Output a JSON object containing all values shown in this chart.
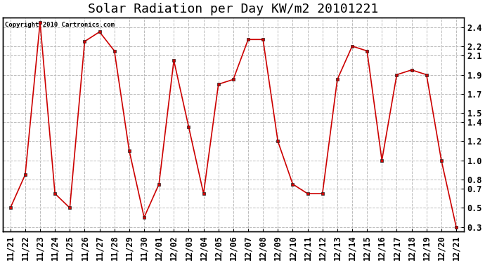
{
  "title": "Solar Radiation per Day KW/m2 20101221",
  "copyright": "Copyright 2010 Cartronics.com",
  "labels": [
    "11/21",
    "11/22",
    "11/23",
    "11/24",
    "11/25",
    "11/26",
    "11/27",
    "11/28",
    "11/29",
    "11/30",
    "12/01",
    "12/02",
    "12/03",
    "12/04",
    "12/05",
    "12/06",
    "12/07",
    "12/08",
    "12/09",
    "12/10",
    "12/11",
    "12/12",
    "12/13",
    "12/14",
    "12/15",
    "12/16",
    "12/17",
    "12/18",
    "12/19",
    "12/20",
    "12/21"
  ],
  "values": [
    0.5,
    0.85,
    2.45,
    0.65,
    0.5,
    2.25,
    2.35,
    2.15,
    1.1,
    0.4,
    0.75,
    2.05,
    1.35,
    0.65,
    1.8,
    1.85,
    2.27,
    2.27,
    1.2,
    0.75,
    0.65,
    0.65,
    1.85,
    2.2,
    2.15,
    1.0,
    1.9,
    1.95,
    1.9,
    1.0,
    0.3
  ],
  "line_color": "#cc0000",
  "marker": "s",
  "marker_size": 2.5,
  "ylim": [
    0.25,
    2.5
  ],
  "yticks": [
    0.3,
    0.5,
    0.7,
    0.8,
    1.0,
    1.2,
    1.4,
    1.5,
    1.7,
    1.9,
    2.1,
    2.2,
    2.4
  ],
  "ytick_labels": [
    "0.3",
    "0.5",
    "0.7",
    "0.8",
    "1.0",
    "1.2",
    "1.4",
    "1.5",
    "1.7",
    "1.9",
    "2.1",
    "2.2",
    "2.4"
  ],
  "background_color": "#ffffff",
  "grid_color": "#bbbbbb",
  "title_fontsize": 13,
  "tick_fontsize": 8.5
}
